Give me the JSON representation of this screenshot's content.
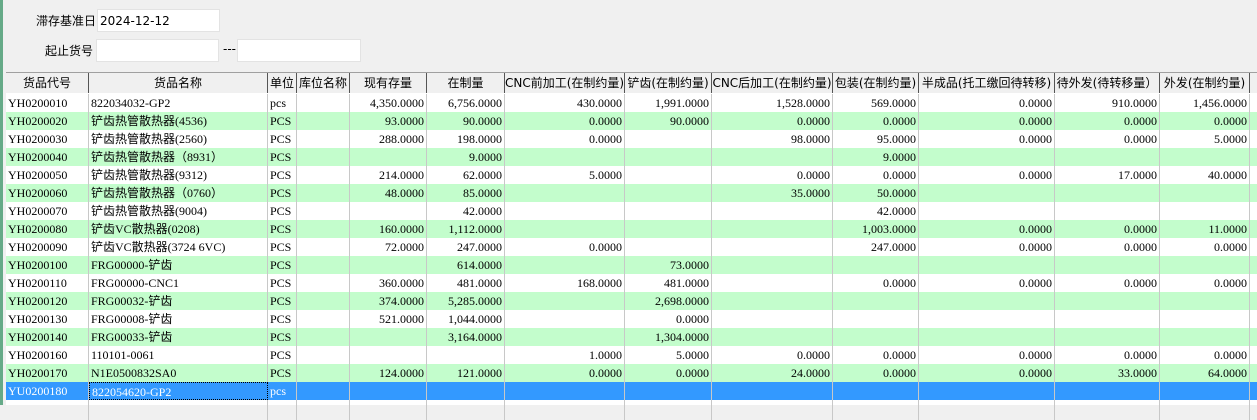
{
  "filters": {
    "base_date_label": "滞存基准日",
    "base_date_value": "2024-12-12",
    "range_label": "起止货号",
    "range_from": "",
    "range_sep": "---",
    "range_to": ""
  },
  "colors": {
    "alt_row": "#c3fdcc",
    "selected_row": "#3399ff"
  },
  "table": {
    "columns": [
      "货品代号",
      "货品名称",
      "单位",
      "库位名称",
      "现有存量",
      "在制量",
      "CNC前加工(在制约量)",
      "铲齿(在制约量)",
      "CNC后加工(在制约量)",
      "包装(在制约量)",
      "半成品(托工缴回待转移)",
      "待外发(待转移量）",
      "外发(在制约量)"
    ],
    "rows": [
      [
        "YH0200010",
        "822034032-GP2",
        "pcs",
        "",
        "4,350.0000",
        "6,756.0000",
        "430.0000",
        "1,991.0000",
        "1,528.0000",
        "569.0000",
        "0.0000",
        "910.0000",
        "1,456.0000"
      ],
      [
        "YH0200020",
        "铲齿热管散热器(4536)",
        "PCS",
        "",
        "93.0000",
        "90.0000",
        "0.0000",
        "90.0000",
        "0.0000",
        "0.0000",
        "0.0000",
        "0.0000",
        "0.0000"
      ],
      [
        "YH0200030",
        "铲齿热管散热器(2560)",
        "PCS",
        "",
        "288.0000",
        "198.0000",
        "0.0000",
        "",
        "98.0000",
        "95.0000",
        "0.0000",
        "0.0000",
        "5.0000"
      ],
      [
        "YH0200040",
        "铲齿热管散热器（8931）",
        "PCS",
        "",
        "",
        "9.0000",
        "",
        "",
        "",
        "9.0000",
        "",
        "",
        ""
      ],
      [
        "YH0200050",
        "铲齿热管散热器(9312)",
        "PCS",
        "",
        "214.0000",
        "62.0000",
        "5.0000",
        "",
        "0.0000",
        "0.0000",
        "0.0000",
        "17.0000",
        "40.0000"
      ],
      [
        "YH0200060",
        "铲齿热管散热器（0760）",
        "PCS",
        "",
        "48.0000",
        "85.0000",
        "",
        "",
        "35.0000",
        "50.0000",
        "",
        "",
        ""
      ],
      [
        "YH0200070",
        "铲齿热管散热器(9004)",
        "PCS",
        "",
        "",
        "42.0000",
        "",
        "",
        "",
        "42.0000",
        "",
        "",
        ""
      ],
      [
        "YH0200080",
        "铲齿VC散热器(0208)",
        "PCS",
        "",
        "160.0000",
        "1,112.0000",
        "",
        "",
        "",
        "1,003.0000",
        "0.0000",
        "0.0000",
        "11.0000"
      ],
      [
        "YH0200090",
        "铲齿VC散热器(3724  6VC)",
        "PCS",
        "",
        "72.0000",
        "247.0000",
        "0.0000",
        "",
        "",
        "247.0000",
        "0.0000",
        "0.0000",
        "0.0000"
      ],
      [
        "YH0200100",
        "FRG00000-铲齿",
        "PCS",
        "",
        "",
        "614.0000",
        "",
        "73.0000",
        "",
        "",
        "",
        "",
        ""
      ],
      [
        "YH0200110",
        "FRG00000-CNC1",
        "PCS",
        "",
        "360.0000",
        "481.0000",
        "168.0000",
        "481.0000",
        "",
        "0.0000",
        "0.0000",
        "0.0000",
        "0.0000"
      ],
      [
        "YH0200120",
        "FRG00032-铲齿",
        "PCS",
        "",
        "374.0000",
        "5,285.0000",
        "",
        "2,698.0000",
        "",
        "",
        "",
        "",
        ""
      ],
      [
        "YH0200130",
        "FRG00008-铲齿",
        "PCS",
        "",
        "521.0000",
        "1,044.0000",
        "",
        "0.0000",
        "",
        "",
        "",
        "",
        ""
      ],
      [
        "YH0200140",
        "FRG00033-铲齿",
        "PCS",
        "",
        "",
        "3,164.0000",
        "",
        "1,304.0000",
        "",
        "",
        "",
        "",
        ""
      ],
      [
        "YH0200160",
        "110101-0061",
        "PCS",
        "",
        "",
        "",
        "1.0000",
        "5.0000",
        "0.0000",
        "0.0000",
        "0.0000",
        "0.0000",
        "0.0000"
      ],
      [
        "YH0200170",
        "N1E0500832SA0",
        "PCS",
        "",
        "124.0000",
        "121.0000",
        "0.0000",
        "0.0000",
        "24.0000",
        "0.0000",
        "0.0000",
        "33.0000",
        "64.0000"
      ],
      [
        "YU0200180",
        "822054620-GP2",
        "pcs",
        "",
        "",
        "",
        "",
        "",
        "",
        "",
        "",
        "",
        ""
      ]
    ],
    "selected_row": 16
  }
}
